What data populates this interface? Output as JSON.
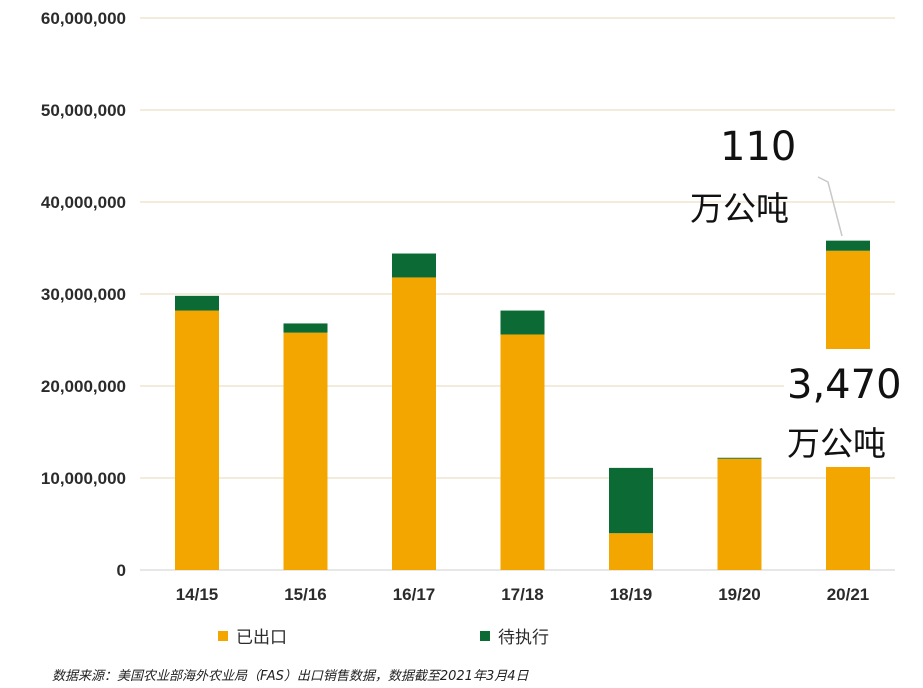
{
  "chart_data": {
    "type": "bar",
    "stacked": true,
    "categories": [
      "14/15",
      "15/16",
      "16/17",
      "17/18",
      "18/19",
      "19/20",
      "20/21"
    ],
    "series": [
      {
        "name": "已出口",
        "color": "#f4a600",
        "values": [
          28200000,
          25800000,
          31800000,
          25600000,
          4000000,
          12100000,
          34700000
        ]
      },
      {
        "name": "待执行",
        "color": "#0c6a34",
        "values": [
          1600000,
          1000000,
          2600000,
          2600000,
          7100000,
          100000,
          1100000
        ]
      }
    ],
    "ylim": [
      0,
      60000000
    ],
    "yticks": [
      0,
      10000000,
      20000000,
      30000000,
      40000000,
      50000000,
      60000000
    ],
    "ytick_labels": [
      "0",
      "10,000,000",
      "20,000,000",
      "30,000,000",
      "40,000,000",
      "50,000,000",
      "60,000,000"
    ],
    "grid": true,
    "legend_position": "bottom",
    "annotations": [
      {
        "target": "20/21 待执行",
        "number": "110",
        "unit": "万公吨"
      },
      {
        "target": "20/21 已出口",
        "number": "3,470",
        "unit": "万公吨"
      }
    ],
    "source_note": "数据来源：美国农业部海外农业局（FAS）出口销售数据，数据截至2021年3月4日"
  }
}
